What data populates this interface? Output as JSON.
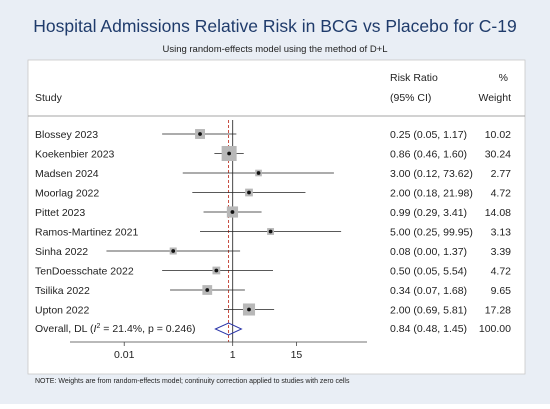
{
  "chart_data": {
    "type": "forest",
    "title": "Hospital Admissions Relative Risk in BCG vs Placebo for C-19",
    "subtitle": "Using random-effects model using the method of D+L",
    "columns": {
      "study": "Study",
      "rr_line1": "Risk Ratio",
      "rr_line2": "(95% CI)",
      "weight_line1": "%",
      "weight_line2": "Weight"
    },
    "x_scale": "log",
    "xlim": [
      0.001,
      300
    ],
    "x_ticks": [
      0.01,
      1,
      15
    ],
    "x_tick_labels": [
      "0.01",
      "1",
      "15"
    ],
    "reference_line": 1,
    "overall_line": 0.84,
    "studies": [
      {
        "name": "Blossey 2023",
        "rr": 0.25,
        "lo": 0.05,
        "hi": 1.17,
        "weight": 10.02,
        "label": "0.25 (0.05, 1.17)",
        "weight_label": "10.02"
      },
      {
        "name": "Koekenbier 2023",
        "rr": 0.86,
        "lo": 0.46,
        "hi": 1.6,
        "weight": 30.24,
        "label": "0.86 (0.46, 1.60)",
        "weight_label": "30.24"
      },
      {
        "name": "Madsen 2024",
        "rr": 3.0,
        "lo": 0.12,
        "hi": 73.62,
        "weight": 2.77,
        "label": "3.00 (0.12, 73.62)",
        "weight_label": "2.77"
      },
      {
        "name": "Moorlag 2022",
        "rr": 2.0,
        "lo": 0.18,
        "hi": 21.98,
        "weight": 4.72,
        "label": "2.00 (0.18, 21.98)",
        "weight_label": "4.72"
      },
      {
        "name": "Pittet 2023",
        "rr": 0.99,
        "lo": 0.29,
        "hi": 3.41,
        "weight": 14.08,
        "label": "0.99 (0.29, 3.41)",
        "weight_label": "14.08"
      },
      {
        "name": "Ramos-Martinez 2021",
        "rr": 5.0,
        "lo": 0.25,
        "hi": 99.95,
        "weight": 3.13,
        "label": "5.00 (0.25, 99.95)",
        "weight_label": "3.13"
      },
      {
        "name": "Sinha 2022",
        "rr": 0.08,
        "lo": 0.0047,
        "hi": 1.37,
        "weight": 3.39,
        "label": "0.08 (0.00, 1.37)",
        "weight_label": "3.39"
      },
      {
        "name": "TenDoesschate 2022",
        "rr": 0.5,
        "lo": 0.05,
        "hi": 5.54,
        "weight": 4.72,
        "label": "0.50 (0.05, 5.54)",
        "weight_label": "4.72"
      },
      {
        "name": "Tsilika 2022",
        "rr": 0.34,
        "lo": 0.07,
        "hi": 1.68,
        "weight": 9.65,
        "label": "0.34 (0.07, 1.68)",
        "weight_label": "9.65"
      },
      {
        "name": "Upton 2022",
        "rr": 2.0,
        "lo": 0.69,
        "hi": 5.81,
        "weight": 17.28,
        "label": "2.00 (0.69, 5.81)",
        "weight_label": "17.28"
      }
    ],
    "overall": {
      "label_prefix": "Overall, DL (",
      "i2_symbol": "I",
      "i2_sup": "2",
      "label_suffix": " = 21.4%, p = 0.246)",
      "rr": 0.84,
      "lo": 0.48,
      "hi": 1.45,
      "value_label": "0.84 (0.48, 1.45)",
      "weight_label": "100.00"
    },
    "note": "NOTE: Weights are from random-effects model; continuity correction applied to studies with zero cells",
    "colors": {
      "background": "#e9eef5",
      "panel": "#ffffff",
      "title": "#1f3b6b",
      "ref_line": "#c0392b",
      "diamond": "#2b35a8",
      "box": "#b8b8b8"
    }
  }
}
